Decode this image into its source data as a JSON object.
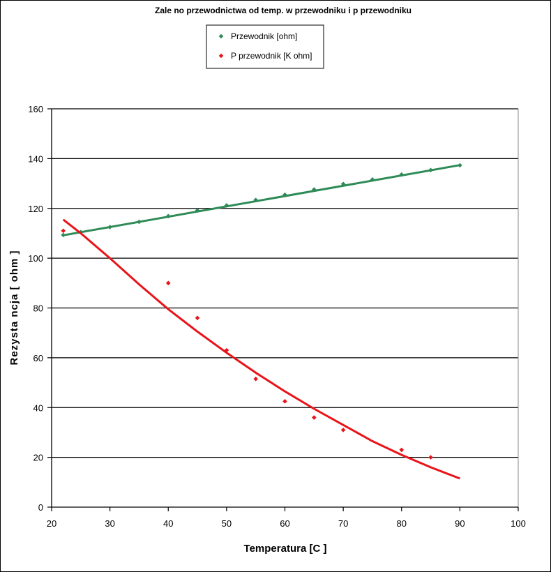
{
  "chart_data": {
    "type": "scatter",
    "title": "Zale  no     przewodnictwa od temp. w przewodniku i p    przewodniku",
    "xlabel": "Temperatura [C ]",
    "ylabel": "Rezysta ncja [ ohm ]",
    "xlim": [
      20,
      100
    ],
    "ylim": [
      0,
      160
    ],
    "x_ticks": [
      20,
      30,
      40,
      50,
      60,
      70,
      80,
      90,
      100
    ],
    "y_ticks": [
      0,
      20,
      40,
      60,
      80,
      100,
      120,
      140,
      160
    ],
    "grid": "horizontal",
    "legend_position": "top-center",
    "series": [
      {
        "name": "Przewodnik [ohm]",
        "color": "#2e8b57",
        "marker": "diamond",
        "x": [
          22,
          25,
          30,
          35,
          40,
          45,
          50,
          55,
          60,
          65,
          70,
          75,
          80,
          85,
          90
        ],
        "y": [
          109.3,
          110.5,
          112.5,
          114.6,
          116.9,
          119.2,
          121.2,
          123.4,
          125.5,
          127.6,
          129.8,
          131.6,
          133.6,
          135.4,
          137.3
        ],
        "trendline": {
          "type": "linear",
          "x": [
            22,
            90
          ],
          "y": [
            109.2,
            137.4
          ]
        }
      },
      {
        "name": "P    przewodnik [K ohm]",
        "color": "#e8141a",
        "marker": "diamond",
        "x": [
          22,
          40,
          45,
          50,
          55,
          60,
          65,
          70,
          80,
          85
        ],
        "y": [
          111,
          90,
          76,
          63,
          51.5,
          42.5,
          36,
          31,
          23,
          20
        ],
        "trendline": {
          "type": "polynomial",
          "x": [
            22,
            25,
            30,
            35,
            40,
            45,
            50,
            55,
            60,
            65,
            70,
            75,
            80,
            85,
            90
          ],
          "y": [
            115.5,
            110,
            100,
            89.5,
            79.5,
            70.5,
            62,
            54,
            46.5,
            39.5,
            33,
            26.5,
            21,
            16,
            11.5
          ]
        }
      }
    ]
  }
}
